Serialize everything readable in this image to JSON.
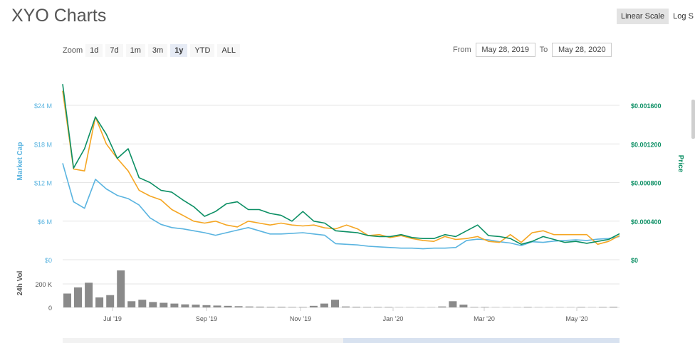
{
  "page": {
    "title": "XYO Charts"
  },
  "scale": {
    "linear_label": "Linear Scale",
    "log_label": "Log S"
  },
  "zoom": {
    "label": "Zoom",
    "buttons": [
      "1d",
      "7d",
      "1m",
      "3m",
      "1y",
      "YTD",
      "ALL"
    ],
    "active": "1y"
  },
  "range": {
    "from_label": "From",
    "from_value": "May 28, 2019",
    "to_label": "To",
    "to_value": "May 28, 2020"
  },
  "colors": {
    "market_cap": "#5ab4e0",
    "price": "#0c8f64",
    "btc": "#f5a623",
    "volume": "#8a8a8a",
    "grid": "#e6e6e6"
  },
  "chart_data": {
    "type": "line",
    "x_ticks": [
      "Jul '19",
      "Sep '19",
      "Nov '19",
      "Jan '20",
      "Mar '20",
      "May '20"
    ],
    "left_axis": {
      "label": "Market Cap",
      "ticks": [
        "$0",
        "$6 M",
        "$12 M",
        "$18 M",
        "$24 M"
      ],
      "ylim": [
        0,
        24000000
      ]
    },
    "right_axis": {
      "label": "Price",
      "ticks": [
        "$0",
        "$0.000400",
        "$0.000800",
        "$0.001200",
        "$0.001600"
      ],
      "ylim": [
        0,
        0.0016
      ]
    },
    "volume_axis": {
      "label": "24h Vol",
      "ticks": [
        "0",
        "200 K"
      ]
    },
    "series": [
      {
        "key": "market_cap",
        "values": [
          15000000,
          9000000,
          8000000,
          12500000,
          11000000,
          10000000,
          9500000,
          8500000,
          6500000,
          5500000,
          5000000,
          4800000,
          4500000,
          4200000,
          3800000,
          4200000,
          4600000,
          5000000,
          4500000,
          4000000,
          4000000,
          4100000,
          4200000,
          4000000,
          3800000,
          2500000,
          2400000,
          2300000,
          2100000,
          2000000,
          1900000,
          1800000,
          1800000,
          1700000,
          1800000,
          1800000,
          1900000,
          3000000,
          3200000,
          3100000,
          2800000,
          2600000,
          2200000,
          2800000,
          2700000,
          2900000,
          3000000,
          3100000,
          3000000,
          3200000,
          3300000,
          3600000
        ]
      },
      {
        "key": "price",
        "values": [
          0.00182,
          0.00095,
          0.00115,
          0.00148,
          0.0013,
          0.00105,
          0.00115,
          0.00085,
          0.0008,
          0.00072,
          0.0007,
          0.00062,
          0.00055,
          0.00045,
          0.0005,
          0.00058,
          0.0006,
          0.00052,
          0.00052,
          0.00048,
          0.00046,
          0.0004,
          0.0005,
          0.0004,
          0.00038,
          0.0003,
          0.00029,
          0.00028,
          0.00025,
          0.00024,
          0.00024,
          0.00026,
          0.00023,
          0.00022,
          0.00022,
          0.00026,
          0.00024,
          0.0003,
          0.00036,
          0.00025,
          0.00024,
          0.00022,
          0.00016,
          0.00019,
          0.00024,
          0.00021,
          0.00018,
          0.00019,
          0.00017,
          0.00019,
          0.00021,
          0.00027
        ]
      },
      {
        "key": "btc",
        "values": [
          0.00175,
          0.00094,
          0.00092,
          0.00148,
          0.0012,
          0.00105,
          0.00092,
          0.00072,
          0.00066,
          0.00062,
          0.00052,
          0.00046,
          0.0004,
          0.00038,
          0.0004,
          0.00036,
          0.00034,
          0.0004,
          0.00038,
          0.00036,
          0.00038,
          0.00036,
          0.00035,
          0.00036,
          0.00033,
          0.00032,
          0.00036,
          0.00032,
          0.00025,
          0.00026,
          0.00023,
          0.00025,
          0.00022,
          0.0002,
          0.00019,
          0.00024,
          0.00021,
          0.00022,
          0.00024,
          0.00019,
          0.00018,
          0.00026,
          0.00018,
          0.00028,
          0.0003,
          0.00026,
          0.00026,
          0.00026,
          0.00026,
          0.00016,
          0.00019,
          0.00025
        ]
      }
    ],
    "volume": [
      90,
      130,
      160,
      65,
      80,
      240,
      40,
      50,
      35,
      30,
      25,
      20,
      18,
      15,
      12,
      10,
      8,
      6,
      5,
      4,
      4,
      3,
      3,
      10,
      25,
      50,
      6,
      4,
      3,
      3,
      3,
      2,
      2,
      2,
      2,
      6,
      40,
      18,
      3,
      3,
      2,
      2,
      2,
      3,
      2,
      2,
      2,
      2,
      3,
      2,
      3,
      4
    ]
  }
}
